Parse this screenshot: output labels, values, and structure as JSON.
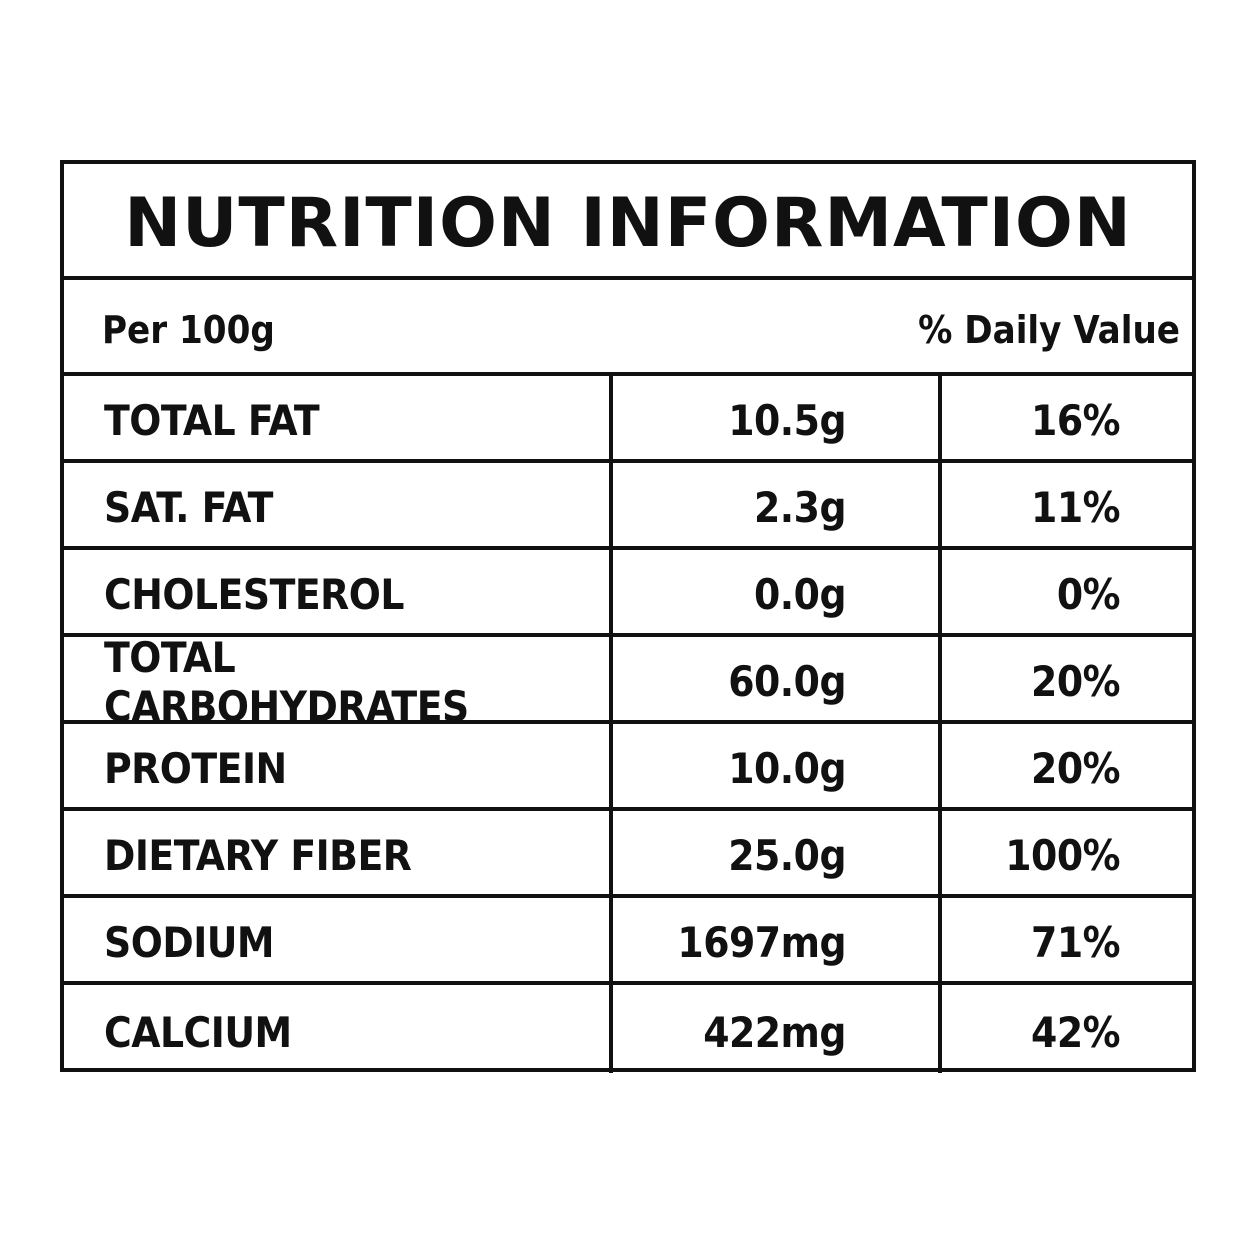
{
  "title": "NUTRITION INFORMATION",
  "header": {
    "serving": "Per 100g",
    "daily_value": "% Daily Value"
  },
  "rows": [
    {
      "name": "TOTAL FAT",
      "amount": "10.5g",
      "dv": "16%"
    },
    {
      "name": "SAT. FAT",
      "amount": "2.3g",
      "dv": "11%"
    },
    {
      "name": "CHOLESTEROL",
      "amount": "0.0g",
      "dv": "0%"
    },
    {
      "name": "TOTAL CARBOHYDRATES",
      "amount": "60.0g",
      "dv": "20%"
    },
    {
      "name": "PROTEIN",
      "amount": "10.0g",
      "dv": "20%"
    },
    {
      "name": "DIETARY FIBER",
      "amount": "25.0g",
      "dv": "100%"
    },
    {
      "name": "SODIUM",
      "amount": "1697mg",
      "dv": "71%"
    },
    {
      "name": "CALCIUM",
      "amount": "422mg",
      "dv": "42%"
    }
  ],
  "colors": {
    "text": "#111111",
    "border": "#111111",
    "background": "#ffffff"
  }
}
